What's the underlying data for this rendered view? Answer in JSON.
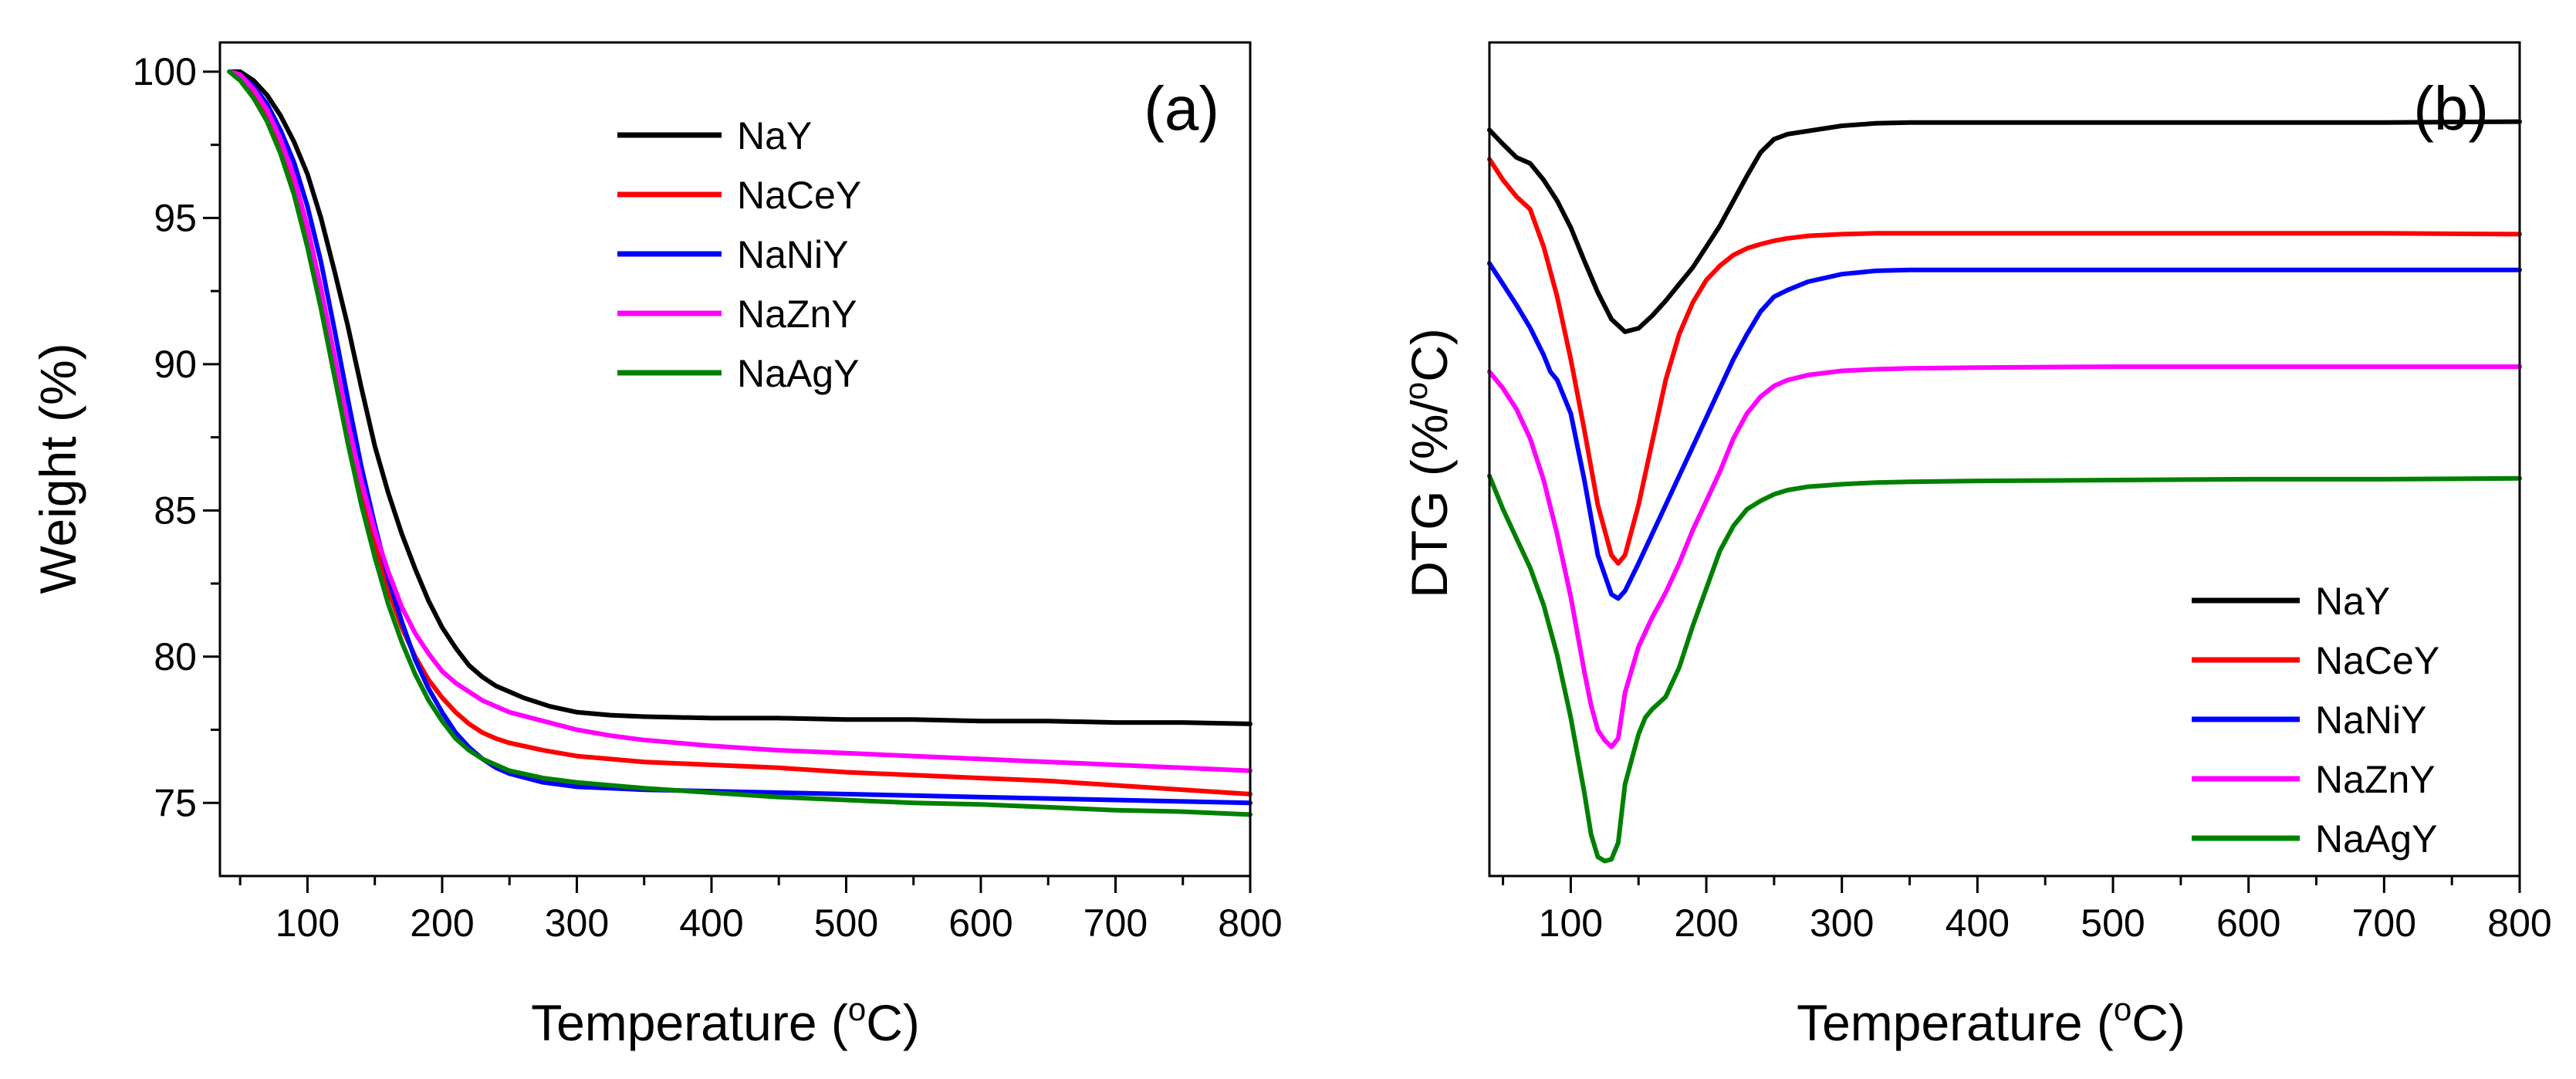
{
  "chart_data": [
    {
      "type": "line",
      "panel_label": "(a)",
      "xlabel": "Temperature",
      "xlabel_unit_open": " (",
      "xlabel_unit_sup": "o",
      "xlabel_unit_close": "C)",
      "ylabel": "Weight (%)",
      "xlim": [
        35,
        800
      ],
      "ylim": [
        72.5,
        101
      ],
      "xticks": [
        100,
        200,
        300,
        400,
        500,
        600,
        700,
        800
      ],
      "yticks": [
        75,
        80,
        85,
        90,
        95,
        100
      ],
      "legend_position": "top-center",
      "series": [
        {
          "name": "NaY",
          "color": "#000000",
          "x": [
            42,
            50,
            60,
            70,
            80,
            90,
            100,
            110,
            120,
            130,
            140,
            150,
            160,
            170,
            180,
            190,
            200,
            210,
            220,
            230,
            240,
            250,
            260,
            280,
            300,
            325,
            350,
            400,
            450,
            500,
            550,
            600,
            650,
            700,
            750,
            800
          ],
          "y": [
            100,
            100,
            99.7,
            99.2,
            98.5,
            97.6,
            96.5,
            95,
            93.2,
            91.3,
            89.2,
            87.2,
            85.6,
            84.2,
            83,
            81.9,
            81,
            80.3,
            79.7,
            79.3,
            79,
            78.8,
            78.6,
            78.3,
            78.1,
            78,
            77.95,
            77.9,
            77.9,
            77.85,
            77.85,
            77.8,
            77.8,
            77.75,
            77.75,
            77.7
          ]
        },
        {
          "name": "NaCeY",
          "color": "#ff0000",
          "x": [
            42,
            50,
            60,
            70,
            80,
            90,
            100,
            110,
            120,
            130,
            140,
            150,
            160,
            170,
            180,
            190,
            200,
            210,
            220,
            230,
            240,
            250,
            275,
            300,
            325,
            350,
            400,
            450,
            500,
            550,
            600,
            650,
            700,
            750,
            800
          ],
          "y": [
            100,
            99.8,
            99.3,
            98.6,
            97.6,
            96.3,
            94.6,
            92.5,
            90.1,
            87.8,
            85.7,
            83.9,
            82.3,
            81,
            80,
            79.2,
            78.6,
            78.1,
            77.7,
            77.4,
            77.2,
            77.05,
            76.8,
            76.6,
            76.5,
            76.4,
            76.3,
            76.2,
            76.05,
            75.95,
            75.85,
            75.75,
            75.6,
            75.45,
            75.3
          ]
        },
        {
          "name": "NaNiY",
          "color": "#0000ff",
          "x": [
            42,
            50,
            60,
            70,
            80,
            90,
            100,
            110,
            120,
            130,
            140,
            150,
            160,
            170,
            180,
            190,
            200,
            210,
            220,
            230,
            240,
            250,
            275,
            300,
            325,
            350,
            400,
            450,
            500,
            550,
            600,
            650,
            700,
            750,
            800
          ],
          "y": [
            100,
            99.9,
            99.5,
            98.9,
            98,
            96.9,
            95.4,
            93.5,
            91.2,
            88.8,
            86.5,
            84.5,
            82.7,
            81.2,
            79.9,
            78.9,
            78.1,
            77.4,
            76.9,
            76.5,
            76.2,
            76,
            75.7,
            75.55,
            75.5,
            75.45,
            75.4,
            75.35,
            75.3,
            75.25,
            75.2,
            75.15,
            75.1,
            75.05,
            75
          ]
        },
        {
          "name": "NaZnY",
          "color": "#ff00ff",
          "x": [
            42,
            50,
            60,
            70,
            80,
            90,
            100,
            110,
            120,
            130,
            140,
            150,
            160,
            170,
            180,
            190,
            200,
            210,
            220,
            230,
            240,
            250,
            275,
            300,
            325,
            350,
            400,
            450,
            500,
            550,
            600,
            650,
            700,
            750,
            800
          ],
          "y": [
            100,
            99.9,
            99.4,
            98.7,
            97.7,
            96.4,
            94.7,
            92.6,
            90.3,
            88,
            86,
            84.3,
            82.9,
            81.7,
            80.8,
            80.1,
            79.5,
            79.1,
            78.8,
            78.5,
            78.3,
            78.1,
            77.8,
            77.5,
            77.3,
            77.15,
            76.95,
            76.8,
            76.7,
            76.6,
            76.5,
            76.4,
            76.3,
            76.2,
            76.1
          ]
        },
        {
          "name": "NaAgY",
          "color": "#008000",
          "x": [
            42,
            50,
            60,
            70,
            80,
            90,
            100,
            110,
            120,
            130,
            140,
            150,
            160,
            170,
            180,
            190,
            200,
            210,
            220,
            230,
            240,
            250,
            275,
            300,
            325,
            350,
            400,
            450,
            500,
            550,
            600,
            650,
            700,
            750,
            800
          ],
          "y": [
            100,
            99.7,
            99.1,
            98.3,
            97.2,
            95.8,
            94,
            91.9,
            89.6,
            87.3,
            85.2,
            83.4,
            81.8,
            80.5,
            79.4,
            78.5,
            77.8,
            77.2,
            76.8,
            76.5,
            76.3,
            76.1,
            75.85,
            75.7,
            75.6,
            75.5,
            75.35,
            75.2,
            75.1,
            75,
            74.95,
            74.85,
            74.75,
            74.7,
            74.6
          ]
        }
      ]
    },
    {
      "type": "line",
      "panel_label": "(b)",
      "xlabel": "Temperature",
      "xlabel_unit_open": " (",
      "xlabel_unit_sup": "o",
      "xlabel_unit_close": "C)",
      "ylabel_pre": "DTG (%/",
      "ylabel_sup": "o",
      "ylabel_post": "C)",
      "xlim": [
        40,
        800
      ],
      "ylim": [
        0,
        100
      ],
      "xticks": [
        100,
        200,
        300,
        400,
        500,
        600,
        700,
        800
      ],
      "yticks": [],
      "y_tick_labels_shown": false,
      "legend_position": "bottom-right",
      "series": [
        {
          "name": "NaY",
          "color": "#000000",
          "x": [
            40,
            50,
            60,
            70,
            80,
            90,
            100,
            110,
            120,
            130,
            140,
            150,
            160,
            170,
            180,
            190,
            200,
            210,
            220,
            230,
            240,
            250,
            260,
            280,
            300,
            325,
            350,
            400,
            500,
            600,
            700,
            800
          ],
          "y": [
            89.5,
            87.8,
            86.2,
            85.5,
            83.5,
            81,
            77.8,
            73.8,
            70,
            66.8,
            65.3,
            65.7,
            67.2,
            69,
            71,
            73,
            75.5,
            78,
            81,
            84,
            86.8,
            88.4,
            89,
            89.5,
            90,
            90.3,
            90.4,
            90.4,
            90.4,
            90.4,
            90.4,
            90.5
          ]
        },
        {
          "name": "NaCeY",
          "color": "#ff0000",
          "x": [
            40,
            50,
            60,
            70,
            80,
            90,
            100,
            110,
            120,
            130,
            135,
            140,
            150,
            160,
            170,
            180,
            190,
            200,
            210,
            220,
            230,
            240,
            250,
            260,
            275,
            300,
            325,
            350,
            400,
            500,
            600,
            700,
            800
          ],
          "y": [
            86,
            83.5,
            81.5,
            80,
            75.5,
            69.5,
            62,
            53.5,
            44.5,
            38.5,
            37.5,
            38.5,
            44.5,
            52,
            59.5,
            65,
            68.8,
            71.5,
            73.2,
            74.5,
            75.3,
            75.8,
            76.2,
            76.5,
            76.8,
            77,
            77.1,
            77.1,
            77.1,
            77.1,
            77.1,
            77.1,
            77
          ]
        },
        {
          "name": "NaNiY",
          "color": "#0000ff",
          "x": [
            40,
            50,
            60,
            70,
            80,
            85,
            90,
            100,
            110,
            120,
            130,
            135,
            140,
            150,
            160,
            170,
            180,
            190,
            200,
            210,
            220,
            230,
            240,
            250,
            260,
            275,
            300,
            325,
            350,
            400,
            500,
            600,
            700,
            800
          ],
          "y": [
            73.5,
            71,
            68.5,
            65.8,
            62.5,
            60.5,
            59.5,
            55.5,
            47.5,
            38.5,
            33.8,
            33.3,
            34.2,
            37.5,
            41,
            44.5,
            48,
            51.5,
            55,
            58.5,
            62,
            65,
            67.7,
            69.5,
            70.3,
            71.3,
            72.2,
            72.6,
            72.7,
            72.7,
            72.7,
            72.7,
            72.7,
            72.7
          ]
        },
        {
          "name": "NaZnY",
          "color": "#ff00ff",
          "x": [
            40,
            50,
            60,
            70,
            80,
            90,
            100,
            110,
            115,
            120,
            125,
            130,
            135,
            140,
            150,
            160,
            170,
            180,
            190,
            200,
            210,
            220,
            230,
            240,
            250,
            260,
            275,
            300,
            325,
            350,
            400,
            500,
            600,
            700,
            800
          ],
          "y": [
            60.5,
            58.5,
            56,
            52.5,
            47.5,
            41,
            33.5,
            24.5,
            20.5,
            17.5,
            16.3,
            15.5,
            16.5,
            22,
            27.5,
            31,
            34,
            37.5,
            41.5,
            45,
            48.5,
            52.5,
            55.5,
            57.5,
            58.8,
            59.5,
            60.1,
            60.6,
            60.8,
            60.9,
            61,
            61.1,
            61.1,
            61.1,
            61.1
          ]
        },
        {
          "name": "NaAgY",
          "color": "#008000",
          "x": [
            40,
            50,
            60,
            70,
            80,
            90,
            100,
            110,
            115,
            120,
            125,
            130,
            135,
            140,
            150,
            155,
            160,
            170,
            180,
            190,
            200,
            210,
            220,
            230,
            240,
            250,
            260,
            275,
            300,
            325,
            350,
            400,
            500,
            600,
            700,
            800
          ],
          "y": [
            48,
            44,
            40.5,
            37,
            32.5,
            26.5,
            19,
            10,
            5,
            2.3,
            1.8,
            2,
            4,
            11,
            17,
            19,
            20,
            21.5,
            25,
            30,
            34.5,
            39,
            42,
            44,
            45,
            45.8,
            46.3,
            46.7,
            47,
            47.2,
            47.3,
            47.4,
            47.5,
            47.6,
            47.6,
            47.7
          ]
        }
      ]
    }
  ]
}
